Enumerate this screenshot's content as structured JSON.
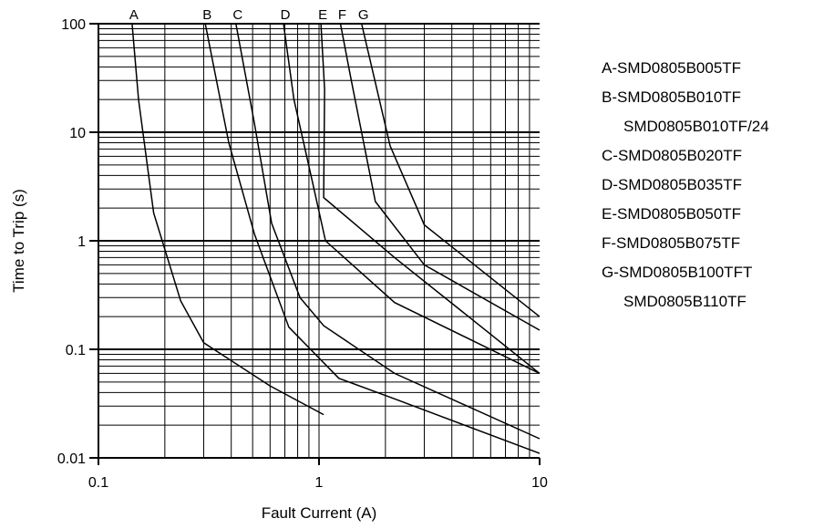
{
  "chart_data": {
    "type": "line",
    "xscale": "log",
    "yscale": "log",
    "xlim": [
      0.1,
      10
    ],
    "ylim": [
      0.01,
      100
    ],
    "xlabel": "Fault Current (A)",
    "ylabel": "Time to Trip (s)",
    "grid": true,
    "x_ticks": [
      "0.1",
      "1",
      "10"
    ],
    "y_ticks": [
      "0.01",
      "0.1",
      "1",
      "10",
      "100"
    ],
    "series": [
      {
        "name": "A",
        "points": [
          [
            0.142,
            100
          ],
          [
            0.152,
            20
          ],
          [
            0.178,
            1.8
          ],
          [
            0.236,
            0.28
          ],
          [
            0.3,
            0.115
          ],
          [
            0.6,
            0.046
          ],
          [
            1.05,
            0.025
          ]
        ]
      },
      {
        "name": "B",
        "points": [
          [
            0.305,
            100
          ],
          [
            0.39,
            8
          ],
          [
            0.51,
            1.15
          ],
          [
            0.73,
            0.16
          ],
          [
            1.23,
            0.054
          ],
          [
            2.2,
            0.035
          ],
          [
            10,
            0.011
          ]
        ]
      },
      {
        "name": "C",
        "points": [
          [
            0.42,
            100
          ],
          [
            0.51,
            12
          ],
          [
            0.61,
            1.45
          ],
          [
            0.82,
            0.3
          ],
          [
            1.05,
            0.165
          ],
          [
            2.2,
            0.06
          ],
          [
            10,
            0.015
          ]
        ]
      },
      {
        "name": "D",
        "points": [
          [
            0.69,
            100
          ],
          [
            0.77,
            20
          ],
          [
            0.92,
            4
          ],
          [
            1.07,
            1.0
          ],
          [
            2.2,
            0.27
          ],
          [
            10,
            0.06
          ]
        ]
      },
      {
        "name": "E",
        "points": [
          [
            1.02,
            100
          ],
          [
            1.06,
            25
          ],
          [
            1.05,
            2.5
          ],
          [
            2.2,
            0.7
          ],
          [
            10,
            0.06
          ]
        ]
      },
      {
        "name": "F",
        "points": [
          [
            1.25,
            100
          ],
          [
            1.4,
            30
          ],
          [
            1.8,
            2.3
          ],
          [
            3.0,
            0.6
          ],
          [
            10,
            0.15
          ]
        ]
      },
      {
        "name": "G",
        "points": [
          [
            1.56,
            100
          ],
          [
            2.1,
            7.5
          ],
          [
            3.0,
            1.4
          ],
          [
            10,
            0.2
          ]
        ]
      }
    ],
    "legend_position": "right",
    "legend": [
      "A-SMD0805B005TF",
      "B-SMD0805B010TF",
      "SMD0805B010TF/24",
      "C-SMD0805B020TF",
      "D-SMD0805B035TF",
      "E-SMD0805B050TF",
      "F-SMD0805B075TF",
      "G-SMD0805B100TFT",
      "SMD0805B110TF"
    ]
  }
}
